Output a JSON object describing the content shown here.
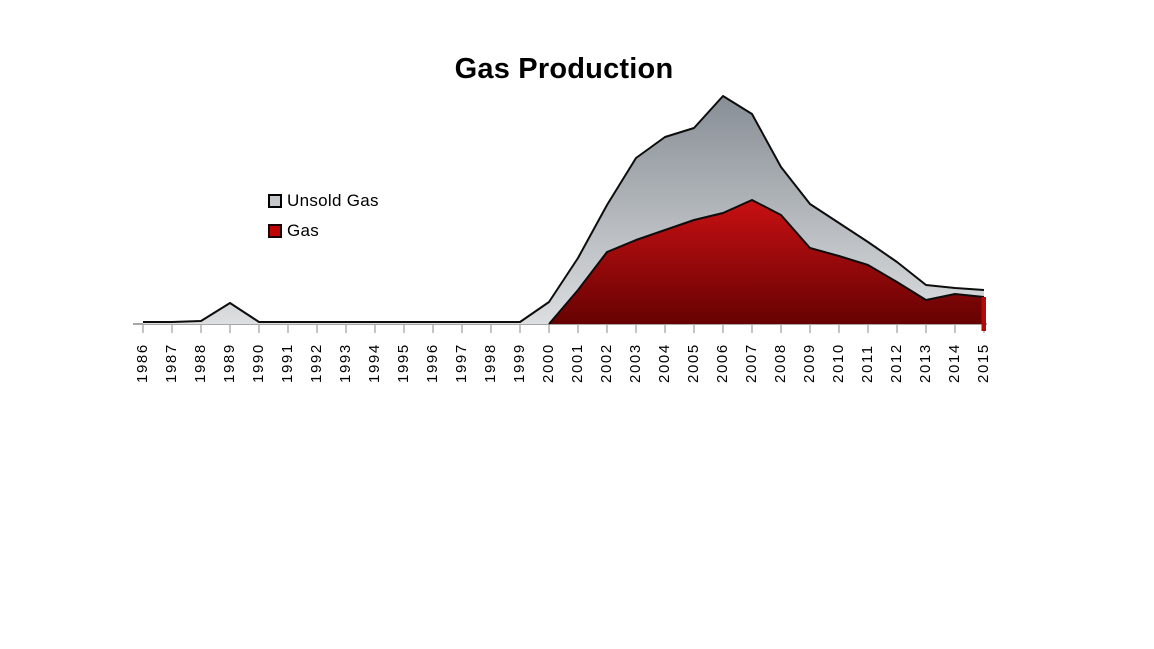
{
  "title": "Gas Production",
  "legend": {
    "items": [
      {
        "label": "Unsold Gas",
        "swatch_color": "#c4c8ca",
        "swatch_border": "#000000"
      },
      {
        "label": "Gas",
        "swatch_color": "#c00404",
        "swatch_border": "#1a0000"
      }
    ]
  },
  "colors": {
    "background": "#ffffff",
    "axis": "#a6a6a6",
    "outline": "#0d0d0d",
    "gray_gradient_top": "#878e95",
    "gray_gradient_bottom": "#dcdee0",
    "red_gradient_top": "#c91013",
    "red_gradient_bottom": "#650202",
    "text": "#000000"
  },
  "chart_data": {
    "type": "area",
    "stacked": true,
    "title": "Gas Production",
    "xlabel": "",
    "ylabel": "",
    "grid": false,
    "value_axis_visible": false,
    "value_units": "relative units (no value axis shown)",
    "ylim": [
      0,
      240
    ],
    "legend_position": "left-center inside plot",
    "x": [
      1986,
      1987,
      1988,
      1989,
      1990,
      1991,
      1992,
      1993,
      1994,
      1995,
      1996,
      1997,
      1998,
      1999,
      2000,
      2001,
      2002,
      2003,
      2004,
      2005,
      2006,
      2007,
      2008,
      2009,
      2010,
      2011,
      2012,
      2013,
      2014,
      2015
    ],
    "series": [
      {
        "name": "Gas",
        "stack_order": "bottom",
        "fill_top": "#c91013",
        "fill_bottom": "#650202",
        "values": [
          0,
          0,
          0,
          0,
          0,
          0,
          0,
          0,
          0,
          0,
          0,
          0,
          0,
          0,
          0,
          34,
          72,
          84,
          94,
          104,
          111,
          124,
          109,
          76,
          68,
          59,
          42,
          24,
          30,
          27
        ]
      },
      {
        "name": "Unsold Gas",
        "stack_order": "top",
        "fill_top": "#878e95",
        "fill_bottom": "#dcdee0",
        "values": [
          2,
          2,
          3,
          21,
          2,
          2,
          2,
          2,
          2,
          2,
          2,
          2,
          2,
          2,
          22,
          32,
          47,
          82,
          93,
          92,
          117,
          86,
          48,
          44,
          33,
          23,
          20,
          15,
          6,
          7
        ]
      }
    ],
    "annotations": {
      "total_peak_year": 2006,
      "gas_peak_year": 2007,
      "early_bump_year": 1989,
      "gas_series_starts": 2000
    }
  }
}
